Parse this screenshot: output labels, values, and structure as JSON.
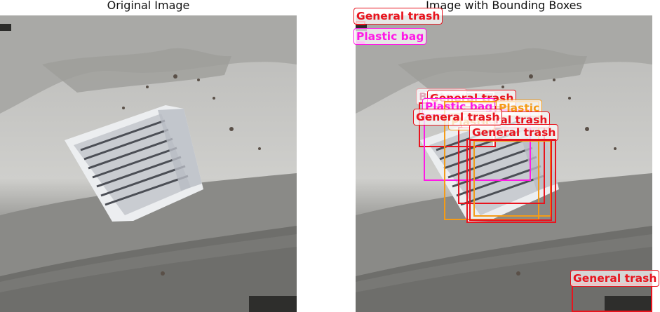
{
  "titles": {
    "left": "Original Image",
    "right": "Image with Bounding Boxes"
  },
  "colors": {
    "General trash": "#e8141e",
    "Plastic bag": "#ff18e6",
    "Plastic": "#f59b16",
    "Battery": "#ffffff",
    "Paper": "#34c5d6"
  },
  "detections": [
    {
      "label": "General trash"
    },
    {
      "label": "Plastic bag"
    },
    {
      "label": "Battery"
    },
    {
      "label": "General trash"
    },
    {
      "label": "Plastic bag"
    },
    {
      "label": "Plastic"
    },
    {
      "label": "General trash"
    },
    {
      "label": "Plastic"
    },
    {
      "label": "General trash"
    },
    {
      "label": "General trash"
    },
    {
      "label": "General trash"
    }
  ]
}
